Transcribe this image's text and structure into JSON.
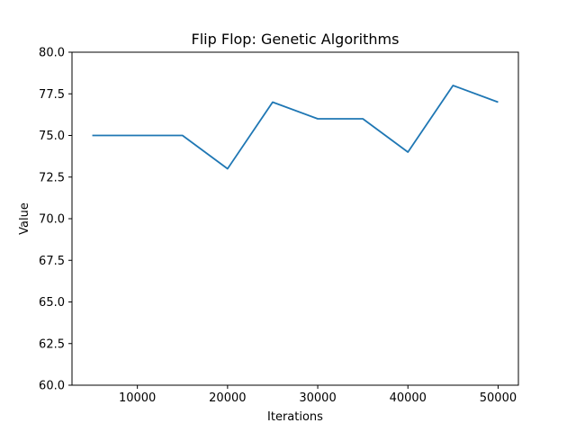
{
  "chart_data": {
    "type": "line",
    "title": "Flip Flop: Genetic Algorithms",
    "xlabel": "Iterations",
    "ylabel": "Value",
    "xlim": [
      2750,
      52250
    ],
    "ylim": [
      60.0,
      80.0
    ],
    "xticks": [
      10000,
      20000,
      30000,
      40000,
      50000
    ],
    "yticks": [
      "60.0",
      "62.5",
      "65.0",
      "67.5",
      "70.0",
      "72.5",
      "75.0",
      "77.5",
      "80.0"
    ],
    "grid": false,
    "series": [
      {
        "color": "#1f77b4",
        "x": [
          5000,
          10000,
          15000,
          20000,
          25000,
          30000,
          35000,
          40000,
          45000,
          50000
        ],
        "y": [
          75,
          75,
          75,
          73,
          77,
          76,
          76,
          74,
          78,
          77
        ]
      }
    ]
  }
}
